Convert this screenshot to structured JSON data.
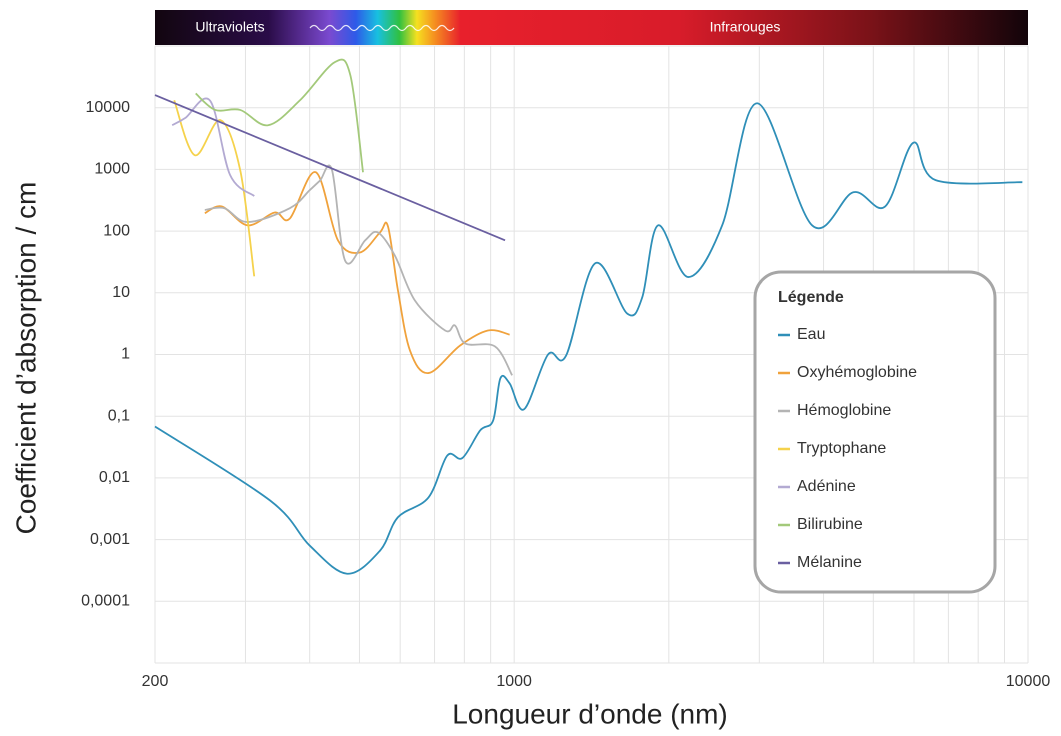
{
  "chart_data": {
    "type": "line",
    "x_label": "Longueur d’onde (nm)",
    "y_label": "Coefficient d’absorption / cm",
    "spectrum_labels": [
      "Ultraviolets",
      "Infrarouges"
    ],
    "legend_title": "Légende",
    "legend_position": "lower right",
    "log_x": true,
    "log_y": true,
    "grid": true,
    "xlim": [
      200,
      10000
    ],
    "ylim": [
      1e-05,
      100000
    ],
    "xticks": [
      200,
      1000,
      10000
    ],
    "xgrid_minor": [
      300,
      400,
      500,
      600,
      700,
      800,
      900,
      2000,
      3000,
      4000,
      5000,
      6000,
      7000,
      8000,
      9000
    ],
    "yticks": [
      {
        "value": 0.0001,
        "label": "0,0001"
      },
      {
        "value": 0.001,
        "label": "0,001"
      },
      {
        "value": 0.01,
        "label": "0,01"
      },
      {
        "value": 0.1,
        "label": "0,1"
      },
      1,
      10,
      100,
      1000,
      10000
    ],
    "series": [
      {
        "name": "Eau",
        "color": "#2f8fb8",
        "x": [
          200,
          335,
          400,
          473,
          548,
          594,
          681,
          741,
          793,
          859,
          910,
          940,
          980,
          1046,
          1164,
          1262,
          1437,
          1660,
          1775,
          1906,
          2182,
          2540,
          2970,
          3800,
          4570,
          5270,
          5980,
          6610,
          9750
        ],
        "values": [
          0.068,
          0.0043,
          0.0008,
          0.00028,
          0.00066,
          0.0023,
          0.0048,
          0.023,
          0.021,
          0.059,
          0.085,
          0.41,
          0.34,
          0.13,
          1,
          0.96,
          30,
          4.6,
          8.4,
          124,
          18,
          124,
          11800,
          124,
          426,
          250,
          2700,
          670,
          620
        ]
      },
      {
        "name": "Oxyhémoglobine",
        "color": "#f0a23c",
        "x": [
          250,
          270,
          303,
          342,
          366,
          411,
          454,
          501,
          548,
          568,
          594,
          627,
          681,
          785,
          889,
          980
        ],
        "values": [
          195,
          250,
          124,
          200,
          160,
          900,
          71,
          45,
          95,
          120,
          11,
          1.16,
          0.5,
          1.4,
          2.45,
          2.1
        ]
      },
      {
        "name": "Hémoglobine",
        "color": "#b4b4b4",
        "x": [
          250,
          273,
          303,
          366,
          400,
          419,
          442,
          469,
          513,
          543,
          586,
          641,
          734,
          767,
          804,
          918,
          991
        ],
        "values": [
          220,
          235,
          140,
          235,
          460,
          660,
          980,
          33,
          71,
          95,
          40,
          7.5,
          2.45,
          2.95,
          1.5,
          1.35,
          0.46
        ]
      },
      {
        "name": "Tryptophane",
        "color": "#f5d24c",
        "x": [
          218,
          239,
          268,
          293,
          312
        ],
        "values": [
          13200,
          1700,
          6300,
          970,
          18.5
        ]
      },
      {
        "name": "Adénine",
        "color": "#b3aad2",
        "x": [
          216,
          229,
          256,
          280,
          312
        ],
        "values": [
          5200,
          6800,
          13000,
          810,
          370
        ]
      },
      {
        "name": "Bilirubine",
        "color": "#a3c97a",
        "x": [
          240,
          262,
          293,
          332,
          383,
          448,
          480,
          508
        ],
        "values": [
          17000,
          9200,
          9200,
          5200,
          13200,
          55000,
          33500,
          900
        ]
      },
      {
        "name": "Mélanine",
        "color": "#6a5fa0",
        "x": [
          200,
          960
        ],
        "values": [
          16000,
          71
        ]
      }
    ]
  }
}
